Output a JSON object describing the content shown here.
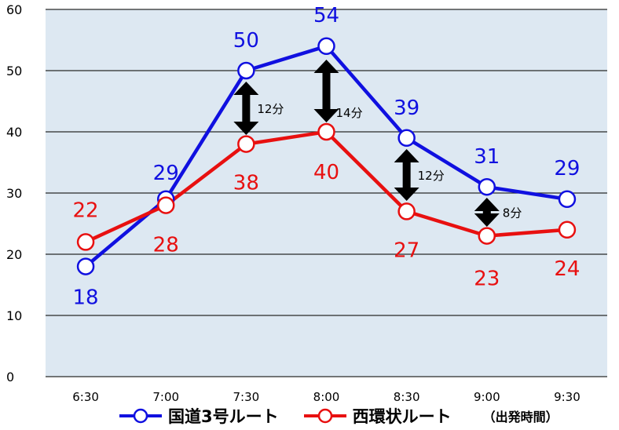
{
  "chart_data": {
    "type": "line",
    "categories": [
      "6:30",
      "7:00",
      "7:30",
      "8:00",
      "8:30",
      "9:00",
      "9:30"
    ],
    "series": [
      {
        "name": "国道3号ルート",
        "color": "#1010e0",
        "values": [
          18,
          29,
          50,
          54,
          39,
          31,
          29
        ]
      },
      {
        "name": "西環状ルート",
        "color": "#e81010",
        "values": [
          22,
          28,
          38,
          40,
          27,
          23,
          24
        ]
      }
    ],
    "ylim": [
      0,
      60
    ],
    "yticks": [
      0,
      10,
      20,
      30,
      40,
      50,
      60
    ],
    "xlabel": "（出発時間）",
    "grid": true,
    "legend_position": "bottom",
    "differences": [
      {
        "category": "7:30",
        "label": "12分"
      },
      {
        "category": "8:00",
        "label": "14分"
      },
      {
        "category": "8:30",
        "label": "12分"
      },
      {
        "category": "9:00",
        "label": "8分"
      }
    ]
  }
}
